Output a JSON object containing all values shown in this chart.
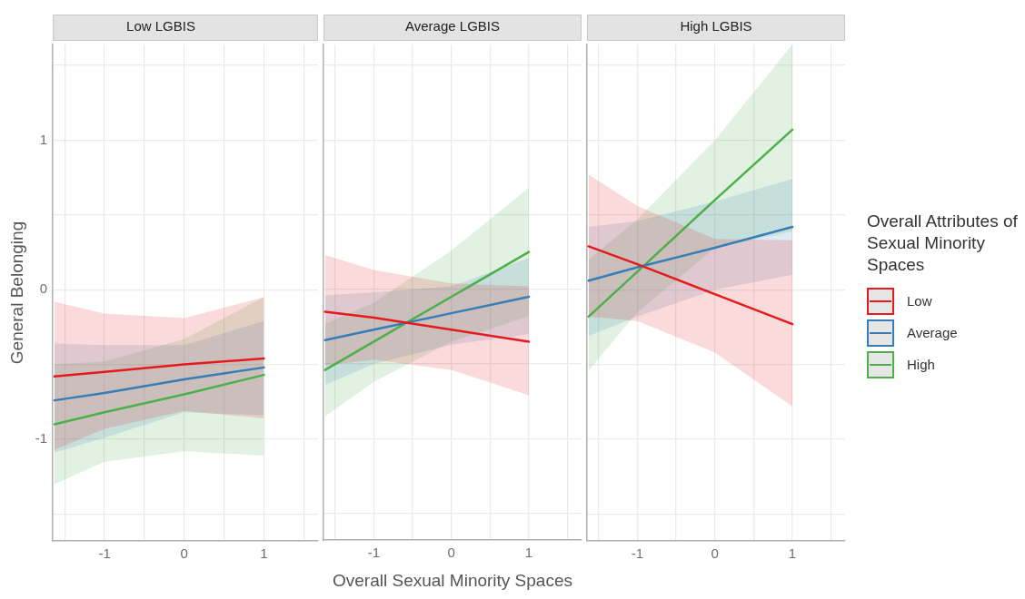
{
  "chart_data": [
    {
      "type": "line",
      "title": "Low LGBIS",
      "ylabel": "General Belonging",
      "xlim": [
        -1.65,
        1.68
      ],
      "ylim": [
        -1.68,
        1.64
      ],
      "xticks": [
        {
          "value": -1.5,
          "label": null
        },
        -1,
        {
          "value": -0.5,
          "label": null
        },
        0,
        {
          "value": 0.5,
          "label": null
        },
        1,
        {
          "value": 1.5,
          "label": null
        }
      ],
      "yticks": [
        {
          "value": -1.5,
          "label": null
        },
        -1,
        {
          "value": -0.5,
          "label": null
        },
        0,
        {
          "value": 0.5,
          "label": null
        },
        1,
        {
          "value": 1.5,
          "label": null
        }
      ],
      "grid": true,
      "line_style": "solid",
      "marker": "none",
      "series": [
        {
          "color": "#e41a1c",
          "x": [
            -1.63,
            -1,
            0,
            1
          ],
          "values": [
            -0.58,
            -0.55,
            -0.5,
            -0.46
          ],
          "lower": [
            -1.07,
            -0.93,
            -0.81,
            -0.86
          ],
          "upper": [
            -0.08,
            -0.16,
            -0.19,
            -0.05
          ]
        },
        {
          "color": "#377eb8",
          "x": [
            -1.63,
            -1,
            0,
            1
          ],
          "values": [
            -0.74,
            -0.69,
            -0.6,
            -0.52
          ],
          "lower": [
            -1.09,
            -0.99,
            -0.82,
            -0.84
          ],
          "upper": [
            -0.36,
            -0.37,
            -0.37,
            -0.21
          ]
        },
        {
          "color": "#4daf4a",
          "x": [
            -1.63,
            -1,
            0,
            1
          ],
          "values": [
            -0.9,
            -0.82,
            -0.7,
            -0.57
          ],
          "lower": [
            -1.3,
            -1.15,
            -1.08,
            -1.11
          ],
          "upper": [
            -0.5,
            -0.48,
            -0.33,
            -0.05
          ]
        }
      ]
    },
    {
      "type": "line",
      "title": "Average LGBIS",
      "xlabel": "Overall Sexual Minority Spaces",
      "tick_labels": "x",
      "xlim": [
        -1.65,
        1.68
      ],
      "ylim": [
        -1.68,
        1.64
      ],
      "xticks": [
        {
          "value": -1.5,
          "label": null
        },
        -1,
        {
          "value": -0.5,
          "label": null
        },
        0,
        {
          "value": 0.5,
          "label": null
        },
        1,
        {
          "value": 1.5,
          "label": null
        }
      ],
      "yticks": [
        {
          "value": -1.5,
          "label": null
        },
        -1,
        {
          "value": -0.5,
          "label": null
        },
        0,
        {
          "value": 0.5,
          "label": null
        },
        1,
        {
          "value": 1.5,
          "label": null
        }
      ],
      "grid": true,
      "line_style": "solid",
      "marker": "none",
      "series": [
        {
          "color": "#e41a1c",
          "x": [
            -1.63,
            -1,
            0,
            1
          ],
          "values": [
            -0.15,
            -0.19,
            -0.27,
            -0.35
          ],
          "lower": [
            -0.51,
            -0.47,
            -0.54,
            -0.71
          ],
          "upper": [
            0.23,
            0.13,
            0.04,
            0.02
          ]
        },
        {
          "color": "#377eb8",
          "x": [
            -1.63,
            -1,
            0,
            1
          ],
          "values": [
            -0.34,
            -0.27,
            -0.16,
            -0.05
          ],
          "lower": [
            -0.64,
            -0.5,
            -0.37,
            -0.3
          ],
          "upper": [
            -0.04,
            -0.02,
            0.02,
            0.21
          ]
        },
        {
          "color": "#4daf4a",
          "x": [
            -1.63,
            -1,
            0,
            1
          ],
          "values": [
            -0.54,
            -0.35,
            -0.05,
            0.25
          ],
          "lower": [
            -0.85,
            -0.62,
            -0.35,
            -0.18
          ],
          "upper": [
            -0.23,
            -0.09,
            0.26,
            0.68
          ]
        }
      ]
    },
    {
      "type": "line",
      "title": "High LGBIS",
      "legend_title": "Overall Attributes of Sexual Minority Spaces",
      "legend": "right",
      "tick_labels": "x",
      "xlim": [
        -1.65,
        1.68
      ],
      "ylim": [
        -1.68,
        1.64
      ],
      "xticks": [
        {
          "value": -1.5,
          "label": null
        },
        -1,
        {
          "value": -0.5,
          "label": null
        },
        0,
        {
          "value": 0.5,
          "label": null
        },
        1,
        {
          "value": 1.5,
          "label": null
        }
      ],
      "yticks": [
        {
          "value": -1.5,
          "label": null
        },
        -1,
        {
          "value": -0.5,
          "label": null
        },
        0,
        {
          "value": 0.5,
          "label": null
        },
        1,
        {
          "value": 1.5,
          "label": null
        }
      ],
      "grid": true,
      "line_style": "solid",
      "marker": "none",
      "series": [
        {
          "name": "Low",
          "color": "#e41a1c",
          "x": [
            -1.63,
            -1,
            0,
            1
          ],
          "values": [
            0.29,
            0.17,
            -0.03,
            -0.23
          ],
          "lower": [
            -0.18,
            -0.21,
            -0.42,
            -0.78
          ],
          "upper": [
            0.77,
            0.56,
            0.34,
            0.33
          ]
        },
        {
          "name": "Average",
          "color": "#377eb8",
          "x": [
            -1.63,
            -1,
            0,
            1
          ],
          "values": [
            0.06,
            0.15,
            0.28,
            0.42
          ],
          "lower": [
            -0.31,
            -0.18,
            0.0,
            0.1
          ],
          "upper": [
            0.42,
            0.46,
            0.59,
            0.74
          ]
        },
        {
          "name": "High",
          "color": "#4daf4a",
          "x": [
            -1.63,
            -1,
            0,
            1
          ],
          "values": [
            -0.18,
            0.12,
            0.6,
            1.07
          ],
          "lower": [
            -0.54,
            -0.15,
            0.28,
            0.39
          ],
          "upper": [
            0.2,
            0.47,
            1.0,
            1.64
          ]
        }
      ]
    }
  ]
}
